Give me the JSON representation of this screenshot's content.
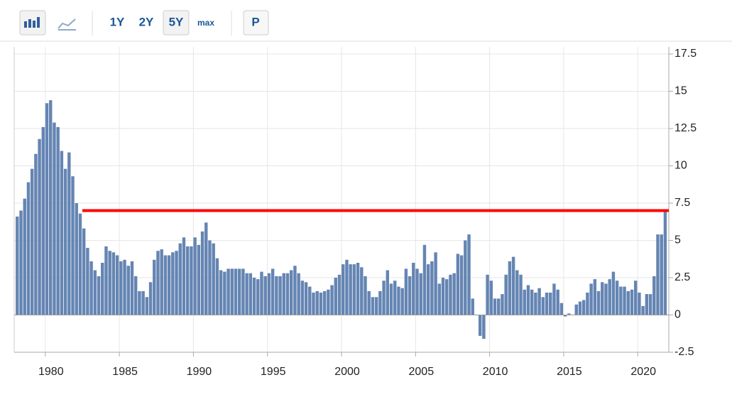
{
  "toolbar": {
    "ranges": [
      "1Y",
      "2Y",
      "5Y",
      "max"
    ],
    "print": "P"
  },
  "chart_data": {
    "type": "bar",
    "x": [
      1978,
      1978.25,
      1978.5,
      1978.75,
      1979,
      1979.25,
      1979.5,
      1979.75,
      1980,
      1980.25,
      1980.5,
      1980.75,
      1981,
      1981.25,
      1981.5,
      1981.75,
      1982,
      1982.25,
      1982.5,
      1982.75,
      1983,
      1983.25,
      1983.5,
      1983.75,
      1984,
      1984.25,
      1984.5,
      1984.75,
      1985,
      1985.25,
      1985.5,
      1985.75,
      1986,
      1986.25,
      1986.5,
      1986.75,
      1987,
      1987.25,
      1987.5,
      1987.75,
      1988,
      1988.25,
      1988.5,
      1988.75,
      1989,
      1989.25,
      1989.5,
      1989.75,
      1990,
      1990.25,
      1990.5,
      1990.75,
      1991,
      1991.25,
      1991.5,
      1991.75,
      1992,
      1992.25,
      1992.5,
      1992.75,
      1993,
      1993.25,
      1993.5,
      1993.75,
      1994,
      1994.25,
      1994.5,
      1994.75,
      1995,
      1995.25,
      1995.5,
      1995.75,
      1996,
      1996.25,
      1996.5,
      1996.75,
      1997,
      1997.25,
      1997.5,
      1997.75,
      1998,
      1998.25,
      1998.5,
      1998.75,
      1999,
      1999.25,
      1999.5,
      1999.75,
      2000,
      2000.25,
      2000.5,
      2000.75,
      2001,
      2001.25,
      2001.5,
      2001.75,
      2002,
      2002.25,
      2002.5,
      2002.75,
      2003,
      2003.25,
      2003.5,
      2003.75,
      2004,
      2004.25,
      2004.5,
      2004.75,
      2005,
      2005.25,
      2005.5,
      2005.75,
      2006,
      2006.25,
      2006.5,
      2006.75,
      2007,
      2007.25,
      2007.5,
      2007.75,
      2008,
      2008.25,
      2008.5,
      2008.75,
      2009,
      2009.25,
      2009.5,
      2009.75,
      2010,
      2010.25,
      2010.5,
      2010.75,
      2011,
      2011.25,
      2011.5,
      2011.75,
      2012,
      2012.25,
      2012.5,
      2012.75,
      2013,
      2013.25,
      2013.5,
      2013.75,
      2014,
      2014.25,
      2014.5,
      2014.75,
      2015,
      2015.25,
      2015.5,
      2015.75,
      2016,
      2016.25,
      2016.5,
      2016.75,
      2017,
      2017.25,
      2017.5,
      2017.75,
      2018,
      2018.25,
      2018.5,
      2018.75,
      2019,
      2019.25,
      2019.5,
      2019.75,
      2020,
      2020.25,
      2020.5,
      2020.75,
      2021,
      2021.25,
      2021.5,
      2021.75
    ],
    "values": [
      6.6,
      7.0,
      7.8,
      8.9,
      9.8,
      10.8,
      11.8,
      12.6,
      14.2,
      14.4,
      12.9,
      12.6,
      11.0,
      9.8,
      10.9,
      9.3,
      7.5,
      6.8,
      5.8,
      4.5,
      3.6,
      3.0,
      2.6,
      3.5,
      4.6,
      4.3,
      4.2,
      4.0,
      3.6,
      3.7,
      3.3,
      3.6,
      2.6,
      1.6,
      1.6,
      1.2,
      2.2,
      3.7,
      4.3,
      4.4,
      4.0,
      4.0,
      4.2,
      4.3,
      4.8,
      5.2,
      4.6,
      4.6,
      5.2,
      4.7,
      5.6,
      6.2,
      5.0,
      4.8,
      3.8,
      3.0,
      2.9,
      3.1,
      3.1,
      3.1,
      3.1,
      3.1,
      2.8,
      2.8,
      2.5,
      2.4,
      2.9,
      2.6,
      2.8,
      3.1,
      2.6,
      2.6,
      2.8,
      2.8,
      3.0,
      3.3,
      2.8,
      2.3,
      2.2,
      1.9,
      1.5,
      1.6,
      1.5,
      1.6,
      1.7,
      2.0,
      2.5,
      2.7,
      3.4,
      3.7,
      3.4,
      3.4,
      3.5,
      3.2,
      2.6,
      1.6,
      1.2,
      1.2,
      1.6,
      2.3,
      3.0,
      2.1,
      2.3,
      1.9,
      1.8,
      3.1,
      2.6,
      3.5,
      3.1,
      2.8,
      4.7,
      3.4,
      3.6,
      4.2,
      2.1,
      2.5,
      2.4,
      2.7,
      2.8,
      4.1,
      4.0,
      5.0,
      5.4,
      1.1,
      0.0,
      -1.4,
      -1.6,
      2.7,
      2.3,
      1.1,
      1.1,
      1.4,
      2.7,
      3.6,
      3.9,
      3.0,
      2.7,
      1.7,
      2.0,
      1.7,
      1.5,
      1.8,
      1.2,
      1.5,
      1.5,
      2.1,
      1.7,
      0.8,
      -0.1,
      0.1,
      0.0,
      0.7,
      0.9,
      1.0,
      1.5,
      2.1,
      2.4,
      1.6,
      2.2,
      2.1,
      2.4,
      2.9,
      2.3,
      1.9,
      1.9,
      1.6,
      1.7,
      2.3,
      1.5,
      0.6,
      1.4,
      1.4,
      2.6,
      5.4,
      5.4,
      7.0
    ],
    "color": "#6585b3",
    "xlim": [
      1977.9,
      2022.1
    ],
    "xticks": [
      1980,
      1985,
      1990,
      1995,
      2000,
      2005,
      2010,
      2015,
      2020
    ],
    "ylim": [
      -2.5,
      17.5
    ],
    "yticks": [
      -2.5,
      0,
      2.5,
      5,
      7.5,
      10,
      12.5,
      15,
      17.5
    ],
    "grid": true,
    "reference_line": {
      "value": 7,
      "x": [
        1982.5,
        2022.1
      ],
      "color": "#ff0000"
    }
  }
}
